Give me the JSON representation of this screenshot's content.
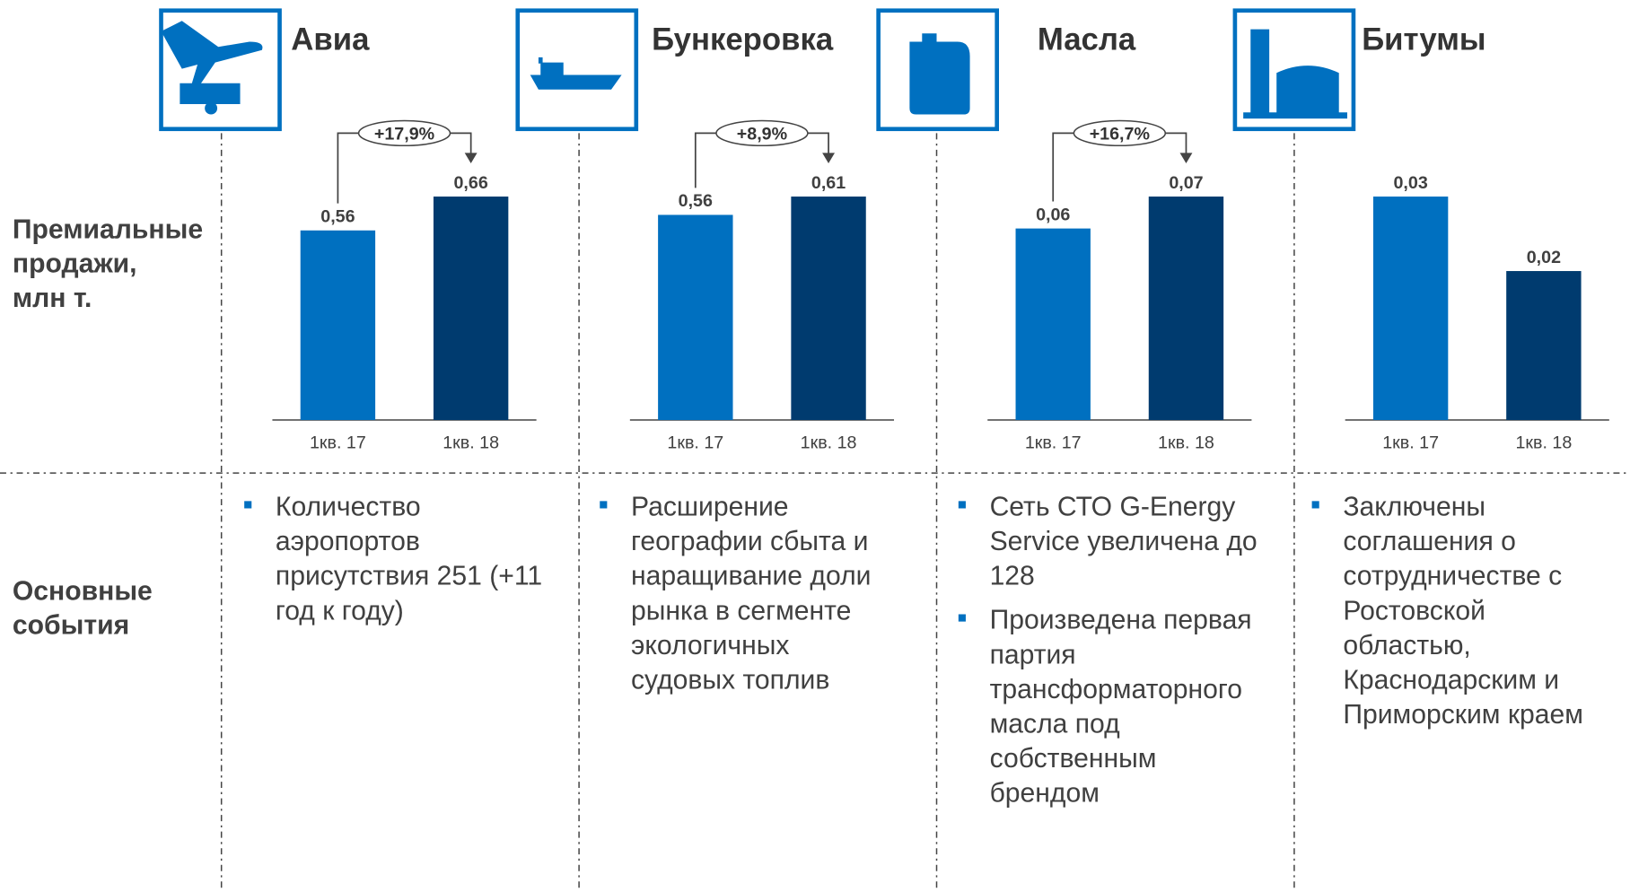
{
  "row_labels": {
    "sales": [
      "Премиальные",
      "продажи,",
      "млн т."
    ],
    "events": [
      "Основные",
      "события"
    ]
  },
  "chart_data": [
    {
      "type": "bar",
      "title": "Авиа",
      "icon": "plane",
      "categories": [
        "1кв. 17",
        "1кв. 18"
      ],
      "values": [
        0.56,
        0.66
      ],
      "value_labels": [
        "0,56",
        "0,66"
      ],
      "colors": [
        "#0070c0",
        "#003b6f"
      ],
      "annotation": "+17,9%"
    },
    {
      "type": "bar",
      "title": "Бункеровка",
      "icon": "ship",
      "categories": [
        "1кв. 17",
        "1кв. 18"
      ],
      "values": [
        0.56,
        0.61
      ],
      "value_labels": [
        "0,56",
        "0,61"
      ],
      "colors": [
        "#0070c0",
        "#003b6f"
      ],
      "annotation": "+8,9%"
    },
    {
      "type": "bar",
      "title": "Масла",
      "icon": "canister",
      "categories": [
        "1кв. 17",
        "1кв. 18"
      ],
      "values": [
        0.06,
        0.07
      ],
      "value_labels": [
        "0,06",
        "0,07"
      ],
      "colors": [
        "#0070c0",
        "#003b6f"
      ],
      "annotation": "+16,7%"
    },
    {
      "type": "bar",
      "title": "Битумы",
      "icon": "tank",
      "categories": [
        "1кв. 17",
        "1кв. 18"
      ],
      "values": [
        0.03,
        0.02
      ],
      "value_labels": [
        "0,03",
        "0,02"
      ],
      "colors": [
        "#0070c0",
        "#003b6f"
      ]
    }
  ],
  "events": [
    [
      [
        "Количество",
        "аэропортов",
        "присутствия 251 (+11",
        "год к году)"
      ]
    ],
    [
      [
        "Расширение",
        "географии сбыта и",
        "наращивание доли",
        "рынка в сегменте",
        "экологичных",
        "судовых топлив"
      ]
    ],
    [
      [
        "Сеть СТО G-Energy",
        "Service увеличена до",
        "128"
      ],
      [
        "Произведена первая",
        "партия",
        "трансформаторного",
        "масла под",
        "собственным",
        "брендом"
      ]
    ],
    [
      [
        "Заключены",
        "соглашения о",
        "сотрудничестве с",
        "Ростовской",
        "областью,",
        "Краснодарским и",
        "Приморским краем"
      ]
    ]
  ]
}
